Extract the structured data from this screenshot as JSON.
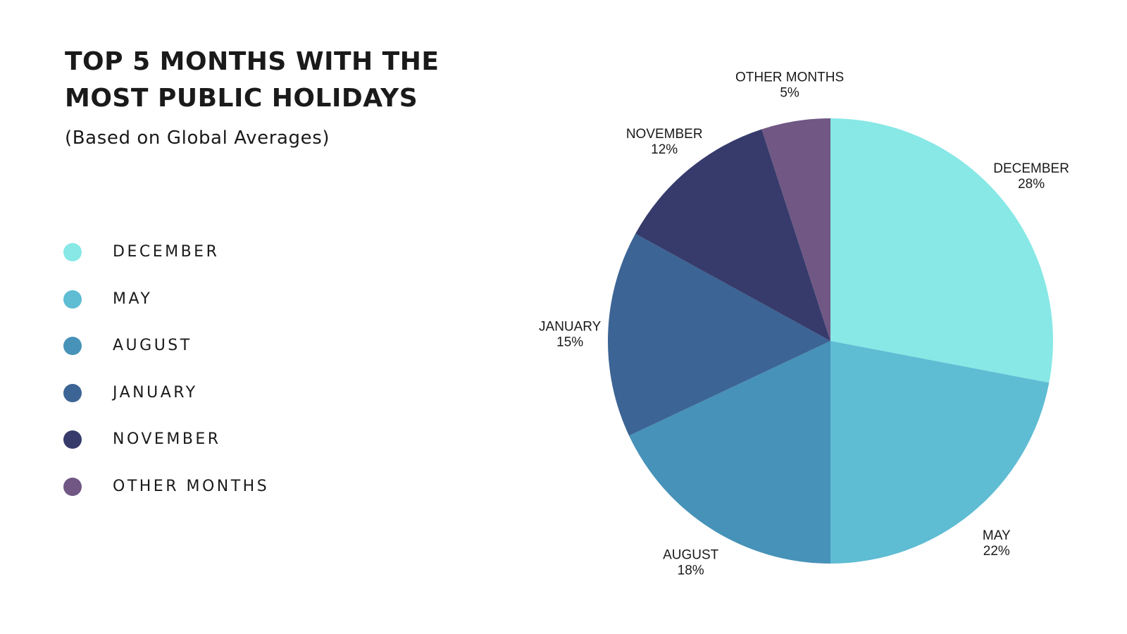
{
  "chart_data": {
    "type": "pie",
    "title_lines": [
      "TOP 5 MONTHS WITH THE",
      "MOST PUBLIC HOLIDAYS"
    ],
    "subtitle": "(Based on Global Averages)",
    "legend_position": "left",
    "slices": [
      {
        "label": "DECEMBER",
        "value": 28,
        "value_label": "28%",
        "color": "#87e8e6"
      },
      {
        "label": "MAY",
        "value": 22,
        "value_label": "22%",
        "color": "#5ebcd3"
      },
      {
        "label": "AUGUST",
        "value": 18,
        "value_label": "18%",
        "color": "#4792b8"
      },
      {
        "label": "JANUARY",
        "value": 15,
        "value_label": "15%",
        "color": "#3c6494"
      },
      {
        "label": "NOVEMBER",
        "value": 12,
        "value_label": "12%",
        "color": "#363b6b"
      },
      {
        "label": "OTHER MONTHS",
        "value": 5,
        "value_label": "5%",
        "color": "#705784"
      }
    ]
  }
}
